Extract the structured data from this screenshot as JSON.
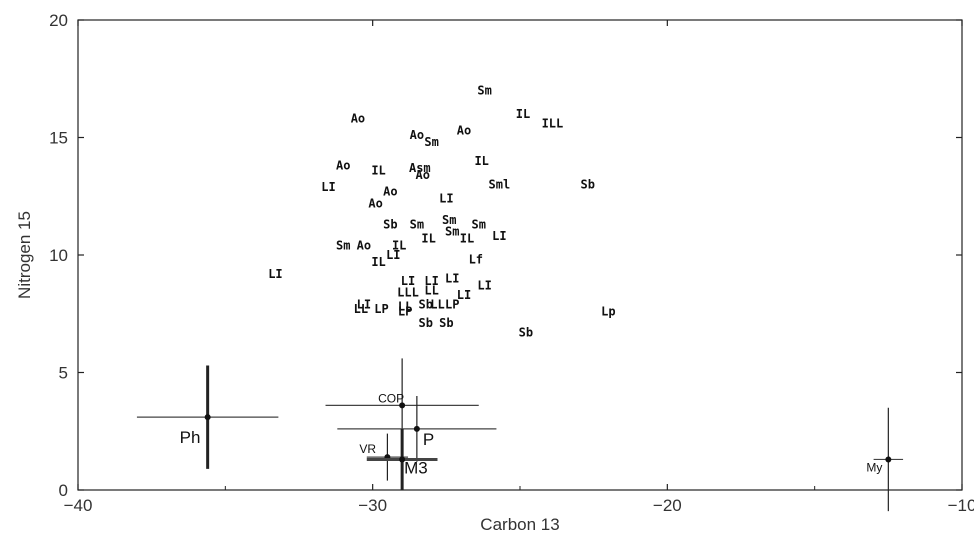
{
  "chart_data": {
    "type": "scatter",
    "title": "",
    "xlabel": "Carbon 13",
    "ylabel": "Nitrogen 15",
    "xlim": [
      -40,
      -10
    ],
    "ylim": [
      0,
      20
    ],
    "xticks": [
      -40,
      -30,
      -20,
      -10
    ],
    "yticks": [
      0,
      5,
      10,
      15,
      20
    ],
    "x_tick_labels": [
      "−40",
      "−30",
      "−20",
      "−10"
    ],
    "y_tick_labels": [
      "0",
      "5",
      "10",
      "15",
      "20"
    ],
    "grid": false,
    "points": [
      {
        "label": "Sm",
        "x": -26.2,
        "y": 17.0
      },
      {
        "label": "IL",
        "x": -24.9,
        "y": 16.0
      },
      {
        "label": "ILL",
        "x": -23.9,
        "y": 15.6
      },
      {
        "label": "Ao",
        "x": -30.5,
        "y": 15.8
      },
      {
        "label": "Ao",
        "x": -26.9,
        "y": 15.3
      },
      {
        "label": "Ao",
        "x": -28.5,
        "y": 15.1
      },
      {
        "label": "Sm",
        "x": -28.0,
        "y": 14.8
      },
      {
        "label": "IL",
        "x": -26.3,
        "y": 14.0
      },
      {
        "label": "Ao",
        "x": -31.0,
        "y": 13.8
      },
      {
        "label": "IL",
        "x": -29.8,
        "y": 13.6
      },
      {
        "label": "Asm",
        "x": -28.4,
        "y": 13.7
      },
      {
        "label": "Ao",
        "x": -28.3,
        "y": 13.4
      },
      {
        "label": "LI",
        "x": -31.5,
        "y": 12.9
      },
      {
        "label": "Sml",
        "x": -25.7,
        "y": 13.0
      },
      {
        "label": "Sb",
        "x": -22.7,
        "y": 13.0
      },
      {
        "label": "Ao",
        "x": -29.4,
        "y": 12.7
      },
      {
        "label": "LI",
        "x": -27.5,
        "y": 12.4
      },
      {
        "label": "Ao",
        "x": -29.9,
        "y": 12.2
      },
      {
        "label": "Sb",
        "x": -29.4,
        "y": 11.3
      },
      {
        "label": "Sm",
        "x": -28.5,
        "y": 11.3
      },
      {
        "label": "Sm",
        "x": -27.4,
        "y": 11.5
      },
      {
        "label": "Sm",
        "x": -26.4,
        "y": 11.3
      },
      {
        "label": "Sm",
        "x": -27.3,
        "y": 11.0
      },
      {
        "label": "LI",
        "x": -25.7,
        "y": 10.8
      },
      {
        "label": "IL",
        "x": -28.1,
        "y": 10.7
      },
      {
        "label": "IL",
        "x": -26.8,
        "y": 10.7
      },
      {
        "label": "Sm",
        "x": -31.0,
        "y": 10.4
      },
      {
        "label": "Ao",
        "x": -30.3,
        "y": 10.4
      },
      {
        "label": "IL",
        "x": -29.1,
        "y": 10.4
      },
      {
        "label": "LI",
        "x": -29.3,
        "y": 10.0
      },
      {
        "label": "IL",
        "x": -29.8,
        "y": 9.7
      },
      {
        "label": "Lf",
        "x": -26.5,
        "y": 9.8
      },
      {
        "label": "LI",
        "x": -33.3,
        "y": 9.2
      },
      {
        "label": "LI",
        "x": -28.8,
        "y": 8.9
      },
      {
        "label": "LI",
        "x": -28.0,
        "y": 8.9
      },
      {
        "label": "LI",
        "x": -27.3,
        "y": 9.0
      },
      {
        "label": "LI",
        "x": -26.2,
        "y": 8.7
      },
      {
        "label": "LLL",
        "x": -28.8,
        "y": 8.4
      },
      {
        "label": "LL",
        "x": -28.0,
        "y": 8.5
      },
      {
        "label": "LI",
        "x": -26.9,
        "y": 8.3
      },
      {
        "label": "LI",
        "x": -30.3,
        "y": 7.9
      },
      {
        "label": "LL",
        "x": -28.9,
        "y": 7.8
      },
      {
        "label": "Sb",
        "x": -28.2,
        "y": 7.9
      },
      {
        "label": "LL",
        "x": -27.8,
        "y": 7.9
      },
      {
        "label": "LP",
        "x": -27.3,
        "y": 7.9
      },
      {
        "label": "LL",
        "x": -30.4,
        "y": 7.7
      },
      {
        "label": "LP",
        "x": -29.7,
        "y": 7.7
      },
      {
        "label": "LP",
        "x": -28.9,
        "y": 7.6
      },
      {
        "label": "Lp",
        "x": -22.0,
        "y": 7.6
      },
      {
        "label": "Sb",
        "x": -28.2,
        "y": 7.1
      },
      {
        "label": "Sb",
        "x": -27.5,
        "y": 7.1
      },
      {
        "label": "Sb",
        "x": -24.8,
        "y": 6.7
      }
    ],
    "sources": [
      {
        "label": "Ph",
        "x": -35.6,
        "y": 3.1,
        "x_err": 2.4,
        "y_err": 2.2,
        "bold": true
      },
      {
        "label": "COP",
        "x": -29.0,
        "y": 3.6,
        "x_err": 2.6,
        "y_err": 2.0,
        "bold": false
      },
      {
        "label": "P",
        "x": -28.5,
        "y": 2.6,
        "x_err": 2.7,
        "y_err": 1.4,
        "bold": false
      },
      {
        "label": "VR",
        "x": -29.5,
        "y": 1.4,
        "x_err": 0.7,
        "y_err": 1.0,
        "bold": false
      },
      {
        "label": "M3",
        "x": -29.0,
        "y": 1.3,
        "x_err": 1.2,
        "y_err": 1.3,
        "bold": true
      },
      {
        "label": "My",
        "x": -12.5,
        "y": 1.3,
        "x_err": 0.5,
        "y_err": 2.2,
        "bold": false
      }
    ]
  }
}
